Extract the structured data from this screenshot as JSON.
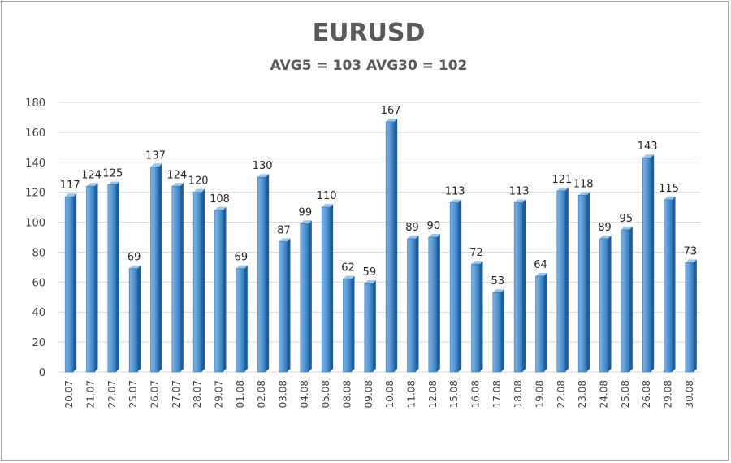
{
  "chart_data": {
    "type": "bar",
    "title": "EURUSD",
    "subtitle": "AVG5 = 103 AVG30 = 102",
    "xlabel": "",
    "ylabel": "",
    "ylim": [
      0,
      180
    ],
    "yticks": [
      0,
      20,
      40,
      60,
      80,
      100,
      120,
      140,
      160,
      180
    ],
    "grid": true,
    "legend": "none",
    "bar_color": "#5b9bd5",
    "categories": [
      "20.07",
      "21.07",
      "22.07",
      "25.07",
      "26.07",
      "27.07",
      "28.07",
      "29.07",
      "01.08",
      "02.08",
      "03.08",
      "04.08",
      "05.08",
      "08.08",
      "09.08",
      "10.08",
      "11.08",
      "12.08",
      "15.08",
      "16.08",
      "17.08",
      "18.08",
      "19.08",
      "22.08",
      "23.08",
      "24.08",
      "25.08",
      "26.08",
      "29.08",
      "30.08"
    ],
    "values": [
      117,
      124,
      125,
      69,
      137,
      124,
      120,
      108,
      69,
      130,
      87,
      99,
      110,
      62,
      59,
      167,
      89,
      90,
      113,
      72,
      53,
      113,
      64,
      121,
      118,
      89,
      95,
      143,
      115,
      73
    ]
  }
}
